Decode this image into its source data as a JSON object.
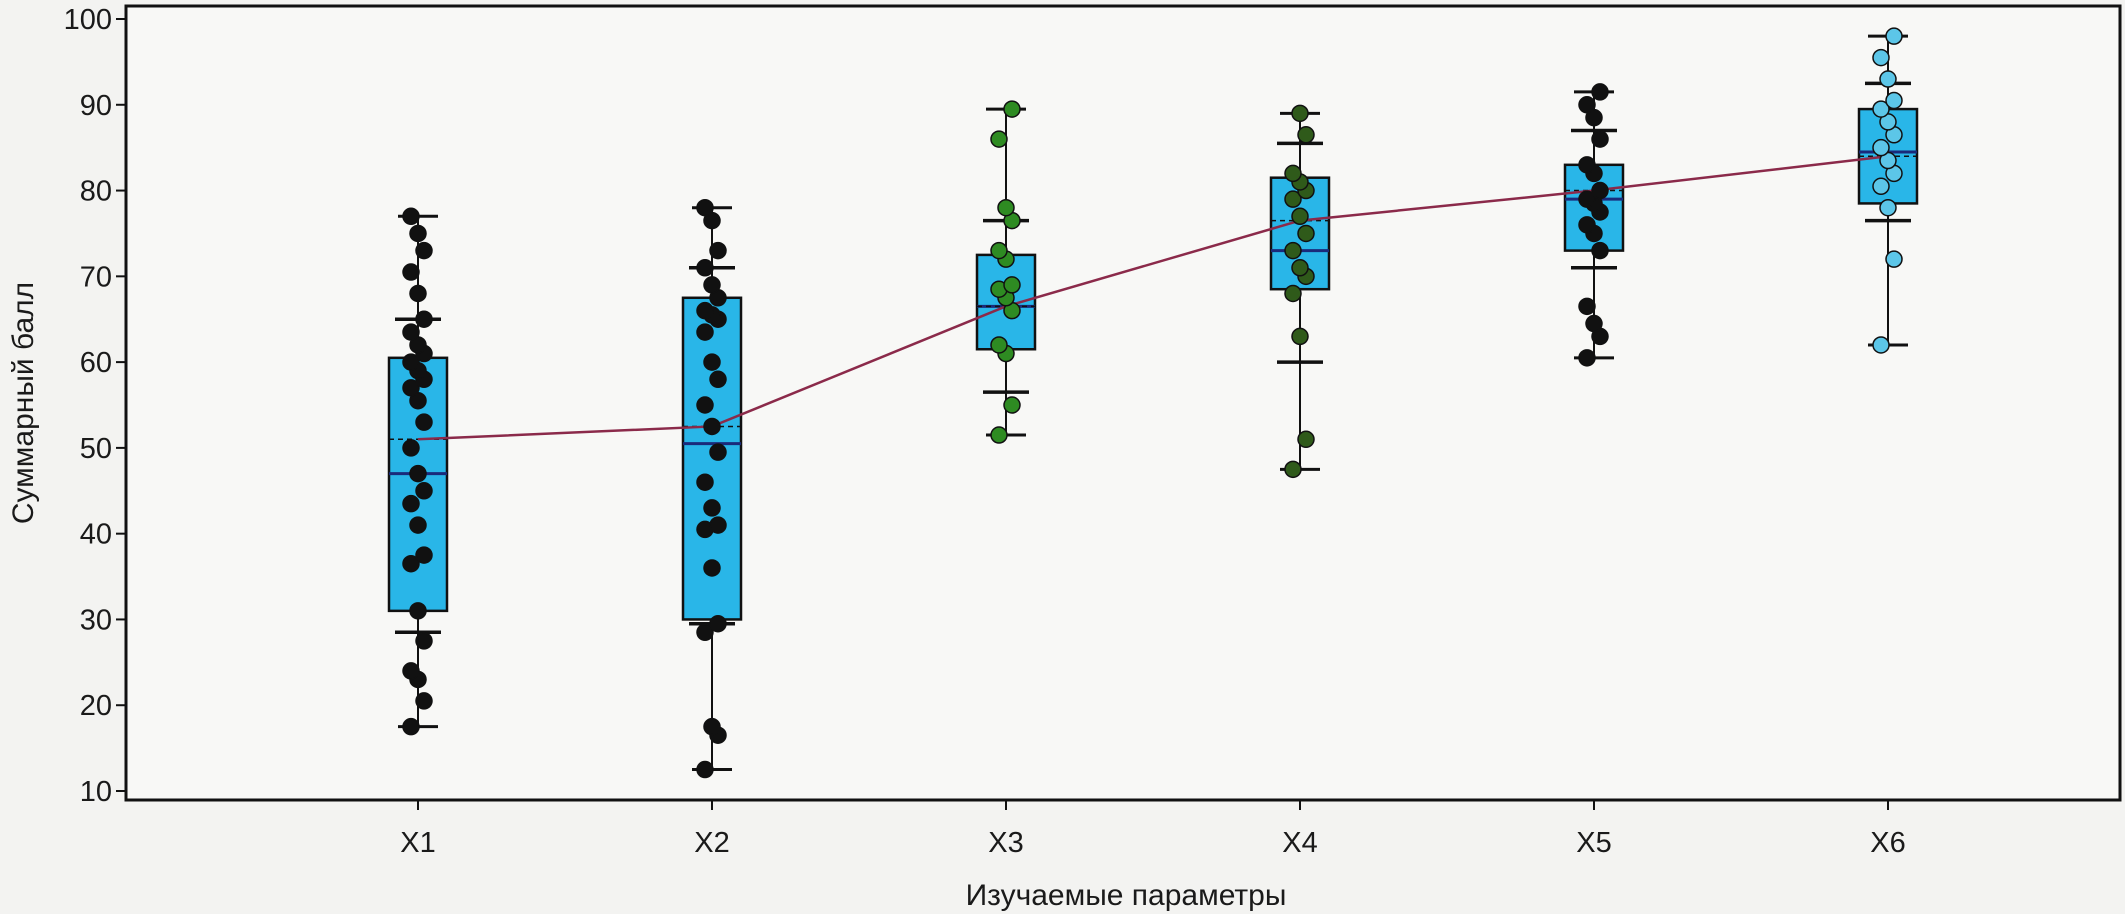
{
  "chart_data": {
    "type": "box",
    "title": "",
    "xlabel": "Изучаемые параметры",
    "ylabel": "Суммарный балл",
    "ylim": [
      10,
      100
    ],
    "yticks": [
      10,
      20,
      30,
      40,
      50,
      60,
      70,
      80,
      90,
      100
    ],
    "grid": false,
    "legend": "none",
    "categories": [
      "X1",
      "X2",
      "X3",
      "X4",
      "X5",
      "X6"
    ],
    "boxes": [
      {
        "category": "X1",
        "q1": 31,
        "median": 47,
        "q3": 60.5,
        "mean": 51,
        "p10": 28.5,
        "p90": 65,
        "min": 17.5,
        "max": 77,
        "point_color": "#111111",
        "points": [
          17.5,
          20.5,
          23,
          24,
          27.5,
          31,
          36.5,
          37.5,
          41,
          43.5,
          45,
          47,
          50,
          53,
          55.5,
          57,
          58,
          59,
          60,
          61,
          62,
          63.5,
          65,
          68,
          70.5,
          73,
          75,
          77
        ]
      },
      {
        "category": "X2",
        "q1": 30,
        "median": 50.5,
        "q3": 67.5,
        "mean": 52.5,
        "p10": 29.5,
        "p90": 71,
        "min": 12.5,
        "max": 78,
        "point_color": "#111111",
        "points": [
          12.5,
          16.5,
          17.5,
          28.5,
          29.5,
          36,
          40.5,
          41,
          43,
          46,
          49.5,
          52.5,
          55,
          58,
          60,
          63.5,
          65,
          65.5,
          66,
          67.5,
          69,
          71,
          73,
          76.5,
          78
        ]
      },
      {
        "category": "X3",
        "q1": 61.5,
        "median": 66.5,
        "q3": 72.5,
        "mean": 66.5,
        "p10": 56.5,
        "p90": 76.5,
        "min": 51.5,
        "max": 89.5,
        "point_color": "#2e8b22",
        "points": [
          51.5,
          55,
          61,
          62,
          66,
          67.5,
          68.5,
          69,
          72,
          73,
          76.5,
          78,
          86,
          89.5
        ]
      },
      {
        "category": "X4",
        "q1": 68.5,
        "median": 73,
        "q3": 81.5,
        "mean": 76.5,
        "p10": 60,
        "p90": 85.5,
        "min": 47.5,
        "max": 89,
        "point_color": "#2f5a1a",
        "points": [
          47.5,
          51,
          63,
          68,
          70,
          71,
          73,
          75,
          77,
          79,
          80,
          81,
          82,
          86.5,
          89
        ]
      },
      {
        "category": "X5",
        "q1": 73,
        "median": 79,
        "q3": 83,
        "mean": 80,
        "p10": 71,
        "p90": 87,
        "min": 60.5,
        "max": 91.5,
        "point_color": "#111111",
        "points": [
          60.5,
          63,
          64.5,
          66.5,
          73,
          75,
          76,
          77.5,
          78.5,
          79,
          80,
          82,
          83,
          86,
          88.5,
          90,
          91.5
        ]
      },
      {
        "category": "X6",
        "q1": 78.5,
        "median": 84.5,
        "q3": 89.5,
        "mean": 84,
        "p10": 76.5,
        "p90": 92.5,
        "min": 62,
        "max": 98,
        "point_color": "#5cc6e8",
        "points": [
          62,
          72,
          78,
          80.5,
          82,
          83.5,
          85,
          86.5,
          88,
          89.5,
          90.5,
          93,
          95.5,
          98
        ]
      }
    ],
    "mean_line": [
      51,
      52.5,
      66.5,
      76.5,
      80,
      84
    ],
    "colors": {
      "box_fill": "#29b6e8",
      "box_stroke": "#111111",
      "mean_line": "#8b2a4a",
      "median_line": "#1a2a7a",
      "whisker": "#111111"
    }
  }
}
